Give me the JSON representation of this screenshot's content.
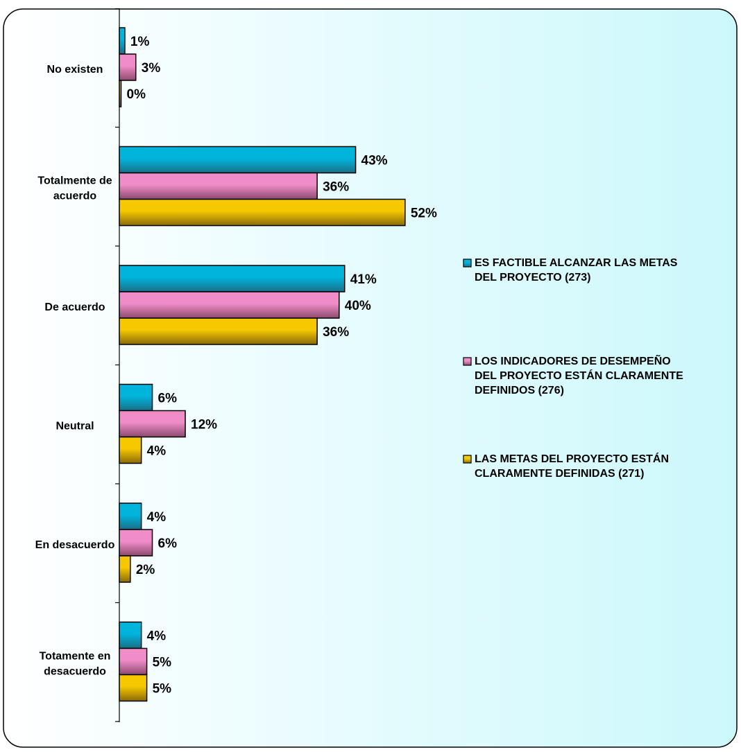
{
  "chart_data": {
    "type": "bar",
    "orientation": "horizontal",
    "categories": [
      "No existen",
      "Totalmente de acuerdo",
      "De acuerdo",
      "Neutral",
      "En desacuerdo",
      "Totamente en desacuerdo"
    ],
    "category_lines": [
      [
        "No existen"
      ],
      [
        "Totalmente de",
        "acuerdo"
      ],
      [
        "De acuerdo"
      ],
      [
        "Neutral"
      ],
      [
        "En desacuerdo"
      ],
      [
        "Totamente en",
        "desacuerdo"
      ]
    ],
    "series": [
      {
        "name": "ES FACTIBLE ALCANZAR LAS METAS DEL PROYECTO (273)",
        "legend_lines": [
          "ES FACTIBLE ALCANZAR LAS METAS",
          "DEL PROYECTO (273)"
        ],
        "color": "#00b4dc",
        "color_dark": "#1a6f88",
        "values": [
          1,
          43,
          41,
          6,
          4,
          4
        ]
      },
      {
        "name": "LOS INDICADORES DE DESEMPEÑO DEL PROYECTO ESTÁN CLARAMENTE DEFINIDOS (276)",
        "legend_lines": [
          "LOS INDICADORES DE DESEMPEÑO",
          "DEL PROYECTO ESTÁN CLARAMENTE",
          "DEFINIDOS (276)"
        ],
        "color": "#f08cc8",
        "color_dark": "#8c4a6e",
        "values": [
          3,
          36,
          40,
          12,
          6,
          5
        ]
      },
      {
        "name": "LAS METAS DEL PROYECTO ESTÁN CLARAMENTE DEFINIDAS (271)",
        "legend_lines": [
          "LAS METAS DEL PROYECTO ESTÁN",
          "CLARAMENTE DEFINIDAS (271)"
        ],
        "color": "#f5c800",
        "color_dark": "#8a6a0a",
        "values": [
          0,
          52,
          36,
          4,
          2,
          5
        ]
      }
    ],
    "value_suffix": "%",
    "xlim": [
      0,
      100
    ],
    "grid": false,
    "legend_position": "right",
    "colors": {
      "background_start": "#ffffff",
      "background_end": "#ccf8fc",
      "frame": "#000000"
    }
  }
}
